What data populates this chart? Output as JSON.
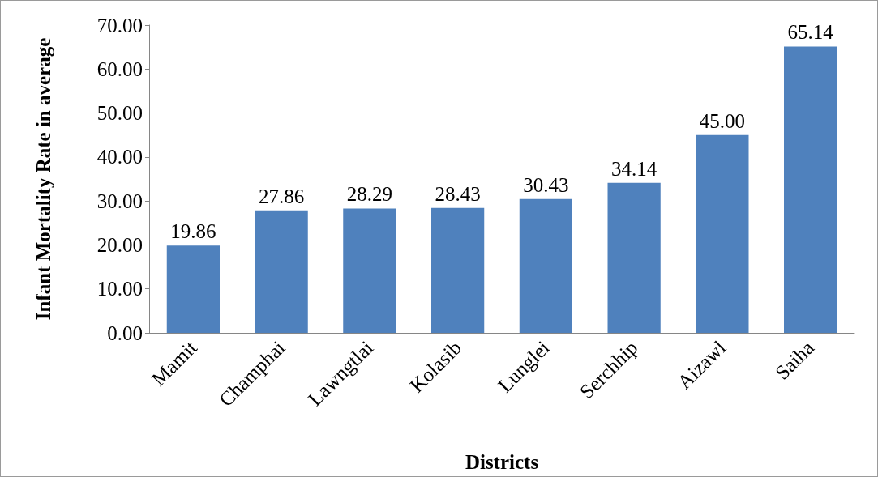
{
  "chart_data": {
    "type": "bar",
    "xlabel": "Districts",
    "ylabel": "Infant Mortality Rate in average",
    "categories": [
      "Mamit",
      "Champhai",
      "Lawngtlai",
      "Kolasib",
      "Lunglei",
      "Serchhip",
      "Aizawl",
      "Saiha"
    ],
    "values": [
      19.86,
      27.86,
      28.29,
      28.43,
      30.43,
      34.14,
      45.0,
      65.14
    ],
    "value_labels": [
      "19.86",
      "27.86",
      "28.29",
      "28.43",
      "30.43",
      "34.14",
      "45.00",
      "65.14"
    ],
    "color": "#4f81bd",
    "ylim": [
      0,
      70
    ],
    "yticks": [
      {
        "value": 0,
        "label": "0.00"
      },
      {
        "value": 10,
        "label": "10.00"
      },
      {
        "value": 20,
        "label": "20.00"
      },
      {
        "value": 30,
        "label": "30.00"
      },
      {
        "value": 40,
        "label": "40.00"
      },
      {
        "value": 50,
        "label": "50.00"
      },
      {
        "value": 60,
        "label": "60.00"
      },
      {
        "value": 70,
        "label": "70.00"
      }
    ],
    "grid": false
  }
}
